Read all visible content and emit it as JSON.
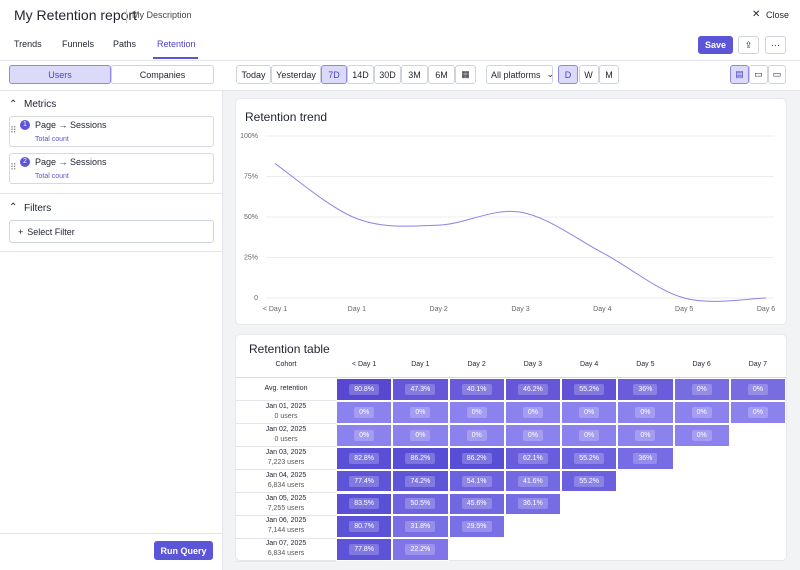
{
  "header": {
    "title": "My Retention report",
    "description": "My Description",
    "close": "Close"
  },
  "tabs": [
    "Trends",
    "Funnels",
    "Paths",
    "Retention"
  ],
  "actions": {
    "save": "Save"
  },
  "toggle": [
    "Users",
    "Companies"
  ],
  "ranges": [
    "Today",
    "Yesterday",
    "7D",
    "14D",
    "30D",
    "3M",
    "6M"
  ],
  "platform": "All platforms",
  "granularity": [
    "D",
    "W",
    "M"
  ],
  "sidebar": {
    "metrics_title": "Metrics",
    "metrics": [
      {
        "index": 1,
        "label": "Page → Sessions",
        "sub": "Total count"
      },
      {
        "index": 2,
        "label": "Page → Sessions",
        "sub": "Total count"
      }
    ],
    "filters_title": "Filters",
    "select_filter": "Select Filter",
    "run": "Run Query"
  },
  "chart_data": {
    "type": "line",
    "title": "Retention trend",
    "categories": [
      "< Day 1",
      "Day 1",
      "Day 2",
      "Day 3",
      "Day 4",
      "Day 5",
      "Day 6"
    ],
    "values": [
      83,
      49,
      45,
      53,
      28,
      0,
      0
    ],
    "color": "#8b84e6",
    "ylim": [
      0,
      100
    ],
    "yticks": [
      0,
      {
        "value": 25,
        "label": "25%"
      },
      {
        "value": 50,
        "label": "50%"
      },
      {
        "value": 75,
        "label": "75%"
      },
      {
        "value": 100,
        "label": "100%"
      }
    ],
    "grid": true
  },
  "table": {
    "title": "Retention table",
    "columns": [
      "Cohort",
      "< Day 1",
      "Day 1",
      "Day 2",
      "Day 3",
      "Day 4",
      "Day 5",
      "Day 6",
      "Day 7"
    ],
    "rows": [
      {
        "cohort": "Avg. retention",
        "cells": [
          "80.8%",
          "47.3%",
          "40.1%",
          "46.2%",
          "55.2%",
          "36%",
          "0%",
          "0%"
        ]
      },
      {
        "cohort": "Jan 01, 2025",
        "users": "0 users",
        "cells": [
          "0%",
          "0%",
          "0%",
          "0%",
          "0%",
          "0%",
          "0%",
          "0%"
        ]
      },
      {
        "cohort": "Jan 02, 2025",
        "users": "0 users",
        "cells": [
          "0%",
          "0%",
          "0%",
          "0%",
          "0%",
          "0%",
          "0%"
        ]
      },
      {
        "cohort": "Jan 03, 2025",
        "users": "7,223 users",
        "cells": [
          "82.8%",
          "86.2%",
          "86.2%",
          "62.1%",
          "55.2%",
          "36%"
        ]
      },
      {
        "cohort": "Jan 04, 2025",
        "users": "6,834 users",
        "cells": [
          "77.4%",
          "74.2%",
          "54.1%",
          "41.6%",
          "55.2%"
        ]
      },
      {
        "cohort": "Jan 05, 2025",
        "users": "7,255 users",
        "cells": [
          "83.5%",
          "50.5%",
          "45.6%",
          "36.1%"
        ]
      },
      {
        "cohort": "Jan 06, 2025",
        "users": "7,144 users",
        "cells": [
          "80.7%",
          "31.8%",
          "29.5%"
        ]
      },
      {
        "cohort": "Jan 07, 2025",
        "users": "6,834 users",
        "cells": [
          "77.8%",
          "22.2%"
        ]
      }
    ]
  }
}
